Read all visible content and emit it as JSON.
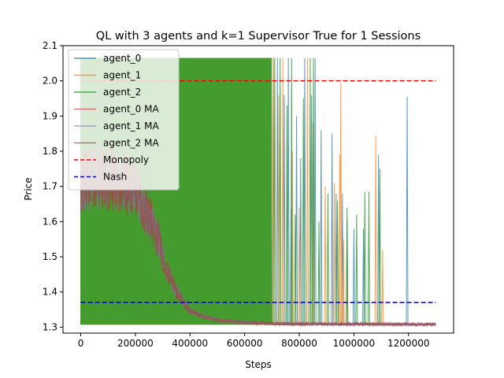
{
  "chart_data": {
    "type": "line",
    "title": "QL with 3 agents and k=1 Supervisor True for 1 Sessions",
    "xlabel": "Steps",
    "ylabel": "Price",
    "xlim": [
      -65000,
      1365000
    ],
    "ylim": [
      1.283,
      2.1
    ],
    "xticks": [
      0,
      200000,
      400000,
      600000,
      800000,
      1000000,
      1200000
    ],
    "xtick_labels": [
      "0",
      "200000",
      "400000",
      "600000",
      "800000",
      "1000000",
      "1200000"
    ],
    "yticks": [
      1.3,
      1.4,
      1.5,
      1.6,
      1.7,
      1.8,
      1.9,
      2.0,
      2.1
    ],
    "ytick_labels": [
      "1.3",
      "1.4",
      "1.5",
      "1.6",
      "1.7",
      "1.8",
      "1.9",
      "2.0",
      "2.1"
    ],
    "grid": false,
    "legend_position": "top-left",
    "price_band": [
      1.307,
      2.065
    ],
    "series": [
      {
        "name": "agent_0",
        "color": "#1f77b4",
        "style": "solid",
        "alpha": 0.75,
        "dense_until": 700000,
        "spikes": [
          [
            705000,
            2.065
          ],
          [
            720000,
            2.065
          ],
          [
            745000,
            1.96
          ],
          [
            760000,
            2.065
          ],
          [
            770000,
            1.64
          ],
          [
            790000,
            1.9
          ],
          [
            805000,
            1.78
          ],
          [
            820000,
            2.065
          ],
          [
            845000,
            1.96
          ],
          [
            858000,
            2.065
          ],
          [
            880000,
            1.86
          ],
          [
            920000,
            1.85
          ],
          [
            935000,
            1.68
          ],
          [
            958000,
            1.68
          ],
          [
            975000,
            1.6
          ],
          [
            1000000,
            1.58
          ],
          [
            1035000,
            1.58
          ],
          [
            1090000,
            1.79
          ],
          [
            1195000,
            1.955
          ]
        ]
      },
      {
        "name": "agent_1",
        "color": "#ff7f0e",
        "style": "solid",
        "alpha": 0.75,
        "dense_until": 700000,
        "spikes": [
          [
            705000,
            2.065
          ],
          [
            725000,
            1.96
          ],
          [
            740000,
            2.065
          ],
          [
            775000,
            1.8
          ],
          [
            800000,
            1.64
          ],
          [
            830000,
            2.065
          ],
          [
            850000,
            1.88
          ],
          [
            895000,
            1.7
          ],
          [
            928000,
            1.71
          ],
          [
            948000,
            1.79
          ],
          [
            952000,
            1.995
          ],
          [
            962000,
            1.55
          ],
          [
            975000,
            1.42
          ],
          [
            1080000,
            1.845
          ],
          [
            1105000,
            1.52
          ]
        ]
      },
      {
        "name": "agent_2",
        "color": "#2ca02c",
        "style": "solid",
        "alpha": 0.85,
        "dense_until": 700000,
        "spikes": [
          [
            710000,
            2.065
          ],
          [
            730000,
            2.065
          ],
          [
            755000,
            1.93
          ],
          [
            772000,
            2.065
          ],
          [
            785000,
            1.62
          ],
          [
            815000,
            1.95
          ],
          [
            840000,
            2.065
          ],
          [
            852000,
            2.065
          ],
          [
            872000,
            1.6
          ],
          [
            905000,
            1.68
          ],
          [
            940000,
            1.66
          ],
          [
            975000,
            1.64
          ],
          [
            1010000,
            1.62
          ],
          [
            1040000,
            1.685
          ],
          [
            1055000,
            1.685
          ],
          [
            1095000,
            1.75
          ]
        ]
      },
      {
        "name": "agent_0 MA",
        "color": "#d62728",
        "style": "solid",
        "alpha": 0.6,
        "ma_curve": [
          [
            0,
            1.72
          ],
          [
            40000,
            1.725
          ],
          [
            80000,
            1.73
          ],
          [
            120000,
            1.725
          ],
          [
            160000,
            1.71
          ],
          [
            200000,
            1.69
          ],
          [
            240000,
            1.63
          ],
          [
            280000,
            1.56
          ],
          [
            300000,
            1.5
          ],
          [
            330000,
            1.43
          ],
          [
            360000,
            1.39
          ],
          [
            400000,
            1.345
          ],
          [
            450000,
            1.33
          ],
          [
            500000,
            1.32
          ],
          [
            600000,
            1.313
          ],
          [
            700000,
            1.31
          ],
          [
            800000,
            1.309
          ],
          [
            1300000,
            1.308
          ]
        ]
      },
      {
        "name": "agent_1 MA",
        "color": "#9467bd",
        "style": "solid",
        "alpha": 0.6,
        "ma_curve": [
          [
            0,
            1.72
          ],
          [
            40000,
            1.725
          ],
          [
            80000,
            1.73
          ],
          [
            120000,
            1.725
          ],
          [
            160000,
            1.71
          ],
          [
            200000,
            1.69
          ],
          [
            240000,
            1.63
          ],
          [
            280000,
            1.56
          ],
          [
            300000,
            1.5
          ],
          [
            330000,
            1.43
          ],
          [
            360000,
            1.39
          ],
          [
            400000,
            1.345
          ],
          [
            450000,
            1.33
          ],
          [
            500000,
            1.32
          ],
          [
            600000,
            1.313
          ],
          [
            700000,
            1.31
          ],
          [
            800000,
            1.309
          ],
          [
            1300000,
            1.308
          ]
        ]
      },
      {
        "name": "agent_2 MA",
        "color": "#8c564b",
        "style": "solid",
        "alpha": 0.7,
        "ma_curve": [
          [
            0,
            1.72
          ],
          [
            40000,
            1.725
          ],
          [
            80000,
            1.73
          ],
          [
            120000,
            1.725
          ],
          [
            160000,
            1.71
          ],
          [
            200000,
            1.69
          ],
          [
            240000,
            1.63
          ],
          [
            280000,
            1.56
          ],
          [
            300000,
            1.5
          ],
          [
            330000,
            1.43
          ],
          [
            360000,
            1.39
          ],
          [
            400000,
            1.345
          ],
          [
            450000,
            1.33
          ],
          [
            500000,
            1.32
          ],
          [
            600000,
            1.313
          ],
          [
            700000,
            1.31
          ],
          [
            800000,
            1.309
          ],
          [
            1300000,
            1.308
          ]
        ]
      },
      {
        "name": "Monopoly",
        "color": "#ff0000",
        "style": "dashed",
        "alpha": 1,
        "y": 2.0,
        "x_range": [
          0,
          1300000
        ]
      },
      {
        "name": "Nash",
        "color": "#0000cc",
        "style": "dashed",
        "alpha": 1,
        "y": 1.37,
        "x_range": [
          0,
          1300000
        ]
      }
    ]
  }
}
